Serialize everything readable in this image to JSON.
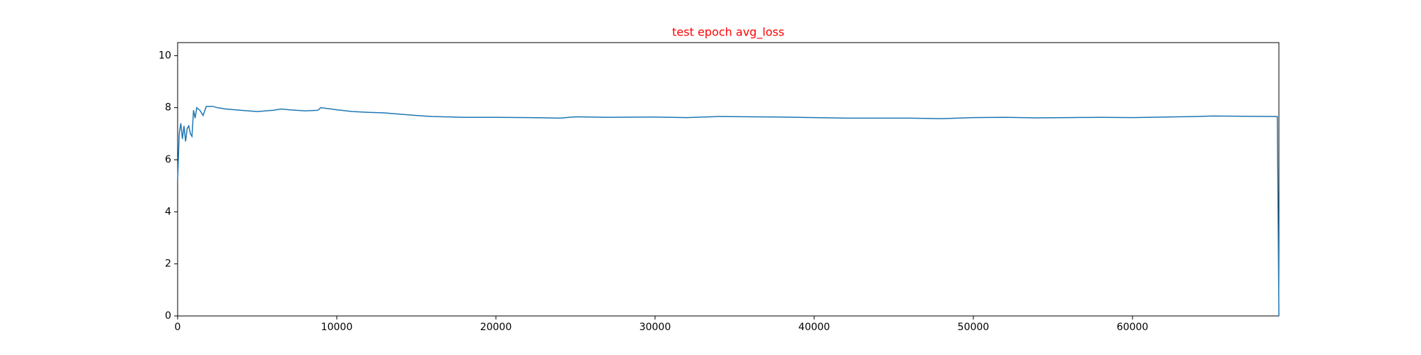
{
  "chart_data": {
    "type": "line",
    "title": "test epoch avg_loss",
    "x": [
      0,
      100,
      200,
      300,
      400,
      500,
      600,
      700,
      800,
      900,
      1000,
      1100,
      1200,
      1400,
      1600,
      1800,
      2200,
      2500,
      3000,
      4000,
      5000,
      6000,
      6500,
      7000,
      8000,
      8800,
      9000,
      10000,
      11000,
      12000,
      13000,
      14000,
      15000,
      16000,
      18000,
      20000,
      22000,
      24000,
      25000,
      27000,
      30000,
      32000,
      34000,
      36000,
      38000,
      40000,
      42000,
      44000,
      46000,
      48000,
      50000,
      52000,
      54000,
      56000,
      58000,
      60000,
      62000,
      64000,
      65000,
      67000,
      69100,
      69200
    ],
    "series": [
      {
        "name": "avg_loss",
        "color": "#1f77b4",
        "values": [
          5.2,
          7.0,
          7.4,
          6.8,
          7.3,
          6.7,
          7.2,
          7.3,
          7.0,
          6.9,
          7.9,
          7.6,
          8.0,
          7.9,
          7.7,
          8.05,
          8.05,
          8.0,
          7.95,
          7.9,
          7.85,
          7.9,
          7.95,
          7.92,
          7.88,
          7.9,
          8.0,
          7.92,
          7.85,
          7.82,
          7.8,
          7.75,
          7.7,
          7.66,
          7.63,
          7.63,
          7.62,
          7.6,
          7.65,
          7.63,
          7.64,
          7.62,
          7.66,
          7.65,
          7.64,
          7.62,
          7.6,
          7.6,
          7.6,
          7.58,
          7.62,
          7.63,
          7.61,
          7.62,
          7.63,
          7.62,
          7.64,
          7.66,
          7.68,
          7.67,
          7.66,
          0
        ]
      }
    ],
    "xlim": [
      0,
      69200
    ],
    "ylim": [
      0,
      10.5
    ],
    "xticks": [
      0,
      10000,
      20000,
      30000,
      40000,
      50000,
      60000
    ],
    "yticks": [
      0,
      2,
      4,
      6,
      8,
      10
    ],
    "grid": false
  }
}
